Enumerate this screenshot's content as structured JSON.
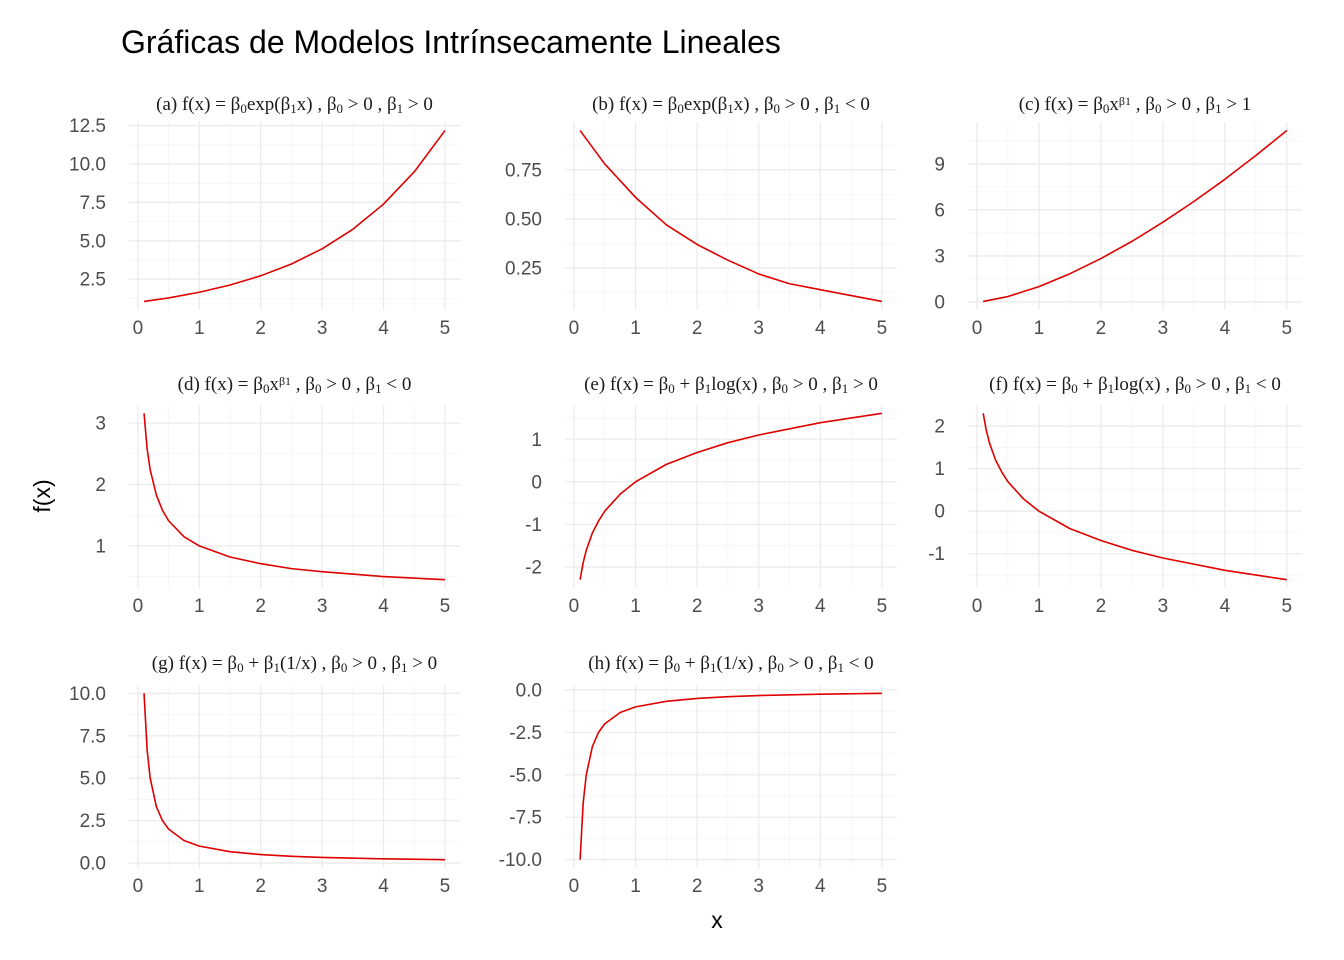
{
  "title": "Gráficas de Modelos Intrínsecamente Lineales",
  "xlabel": "x",
  "ylabel": "f(x)",
  "colors": {
    "curve": "#e00000"
  },
  "chart_data": [
    {
      "type": "line",
      "panel": "a",
      "title": "(a) f(x) = β0exp(β1x) , β0 > 0 , β1 > 0",
      "x": [
        0.1,
        0.5,
        1,
        1.5,
        2,
        2.5,
        3,
        3.5,
        4,
        4.5,
        5
      ],
      "y": [
        1.05,
        1.28,
        1.65,
        2.12,
        2.72,
        3.49,
        4.48,
        5.75,
        7.39,
        9.49,
        12.18
      ],
      "xlim": [
        0,
        5
      ],
      "ylim": [
        1.05,
        12.18
      ],
      "xticks": [
        0,
        1,
        2,
        3,
        4,
        5
      ],
      "yticks": [
        2.5,
        5.0,
        7.5,
        10.0,
        12.5
      ],
      "xtick_labels": [
        "0",
        "1",
        "2",
        "3",
        "4",
        "5"
      ],
      "ytick_labels": [
        "2.5",
        "5.0",
        "7.5",
        "10.0",
        "12.5"
      ]
    },
    {
      "type": "line",
      "panel": "b",
      "title": "(b) f(x) = β0exp(β1x) , β0 > 0 , β1 < 0",
      "x": [
        0.1,
        0.5,
        1,
        1.5,
        2,
        2.5,
        3,
        3.5,
        4,
        4.5,
        5
      ],
      "y": [
        0.95,
        0.78,
        0.61,
        0.47,
        0.37,
        0.29,
        0.22,
        0.17,
        0.14,
        0.11,
        0.08
      ],
      "xlim": [
        0,
        5
      ],
      "ylim": [
        0.08,
        0.95
      ],
      "xticks": [
        0,
        1,
        2,
        3,
        4,
        5
      ],
      "yticks": [
        0.25,
        0.5,
        0.75
      ],
      "xtick_labels": [
        "0",
        "1",
        "2",
        "3",
        "4",
        "5"
      ],
      "ytick_labels": [
        "0.25",
        "0.50",
        "0.75"
      ]
    },
    {
      "type": "line",
      "panel": "c",
      "title": "(c) f(x) = β0x^β1 , β0 > 0 , β1 > 1",
      "x": [
        0.1,
        0.5,
        1,
        1.5,
        2,
        2.5,
        3,
        3.5,
        4,
        4.5,
        5
      ],
      "y": [
        0.03,
        0.35,
        1.0,
        1.84,
        2.83,
        3.95,
        5.2,
        6.55,
        8.0,
        9.55,
        11.18
      ],
      "xlim": [
        0,
        5
      ],
      "ylim": [
        0.03,
        11.18
      ],
      "xticks": [
        0,
        1,
        2,
        3,
        4,
        5
      ],
      "yticks": [
        0,
        3,
        6,
        9
      ],
      "xtick_labels": [
        "0",
        "1",
        "2",
        "3",
        "4",
        "5"
      ],
      "ytick_labels": [
        "0",
        "3",
        "6",
        "9"
      ]
    },
    {
      "type": "line",
      "panel": "d",
      "title": "(d) f(x) = β0x^β1 , β0 > 0 , β1 < 0",
      "x": [
        0.1,
        0.15,
        0.2,
        0.3,
        0.4,
        0.5,
        0.75,
        1,
        1.5,
        2,
        2.5,
        3,
        4,
        5
      ],
      "y": [
        3.16,
        2.58,
        2.24,
        1.83,
        1.58,
        1.41,
        1.15,
        1.0,
        0.82,
        0.71,
        0.63,
        0.58,
        0.5,
        0.45
      ],
      "xlim": [
        0,
        5
      ],
      "ylim": [
        0.45,
        3.16
      ],
      "xticks": [
        0,
        1,
        2,
        3,
        4,
        5
      ],
      "yticks": [
        1,
        2,
        3
      ],
      "xtick_labels": [
        "0",
        "1",
        "2",
        "3",
        "4",
        "5"
      ],
      "ytick_labels": [
        "1",
        "2",
        "3"
      ]
    },
    {
      "type": "line",
      "panel": "e",
      "title": "(e) f(x) = β0 + β1log(x) , β0 > 0 , β1 > 0",
      "x": [
        0.1,
        0.15,
        0.2,
        0.3,
        0.4,
        0.5,
        0.75,
        1,
        1.5,
        2,
        2.5,
        3,
        4,
        5
      ],
      "y": [
        -2.3,
        -1.9,
        -1.61,
        -1.2,
        -0.92,
        -0.69,
        -0.29,
        0.0,
        0.41,
        0.69,
        0.92,
        1.1,
        1.39,
        1.61
      ],
      "xlim": [
        0,
        5
      ],
      "ylim": [
        -2.3,
        1.61
      ],
      "xticks": [
        0,
        1,
        2,
        3,
        4,
        5
      ],
      "yticks": [
        -2,
        -1,
        0,
        1
      ],
      "xtick_labels": [
        "0",
        "1",
        "2",
        "3",
        "4",
        "5"
      ],
      "ytick_labels": [
        "-2",
        "-1",
        "0",
        "1"
      ]
    },
    {
      "type": "line",
      "panel": "f",
      "title": "(f) f(x) = β0 + β1log(x) , β0 > 0 , β1 < 0",
      "x": [
        0.1,
        0.15,
        0.2,
        0.3,
        0.4,
        0.5,
        0.75,
        1,
        1.5,
        2,
        2.5,
        3,
        4,
        5
      ],
      "y": [
        2.3,
        1.9,
        1.61,
        1.2,
        0.92,
        0.69,
        0.29,
        0.0,
        -0.41,
        -0.69,
        -0.92,
        -1.1,
        -1.39,
        -1.61
      ],
      "xlim": [
        0,
        5
      ],
      "ylim": [
        -1.61,
        2.3
      ],
      "xticks": [
        0,
        1,
        2,
        3,
        4,
        5
      ],
      "yticks": [
        -1,
        0,
        1,
        2
      ],
      "xtick_labels": [
        "0",
        "1",
        "2",
        "3",
        "4",
        "5"
      ],
      "ytick_labels": [
        "-1",
        "0",
        "1",
        "2"
      ]
    },
    {
      "type": "line",
      "panel": "g",
      "title": "(g) f(x) = β0 + β1(1/x) , β0 > 0 , β1 > 0",
      "x": [
        0.1,
        0.15,
        0.2,
        0.3,
        0.4,
        0.5,
        0.75,
        1,
        1.5,
        2,
        2.5,
        3,
        4,
        5
      ],
      "y": [
        10.0,
        6.67,
        5.0,
        3.33,
        2.5,
        2.0,
        1.33,
        1.0,
        0.67,
        0.5,
        0.4,
        0.33,
        0.25,
        0.2
      ],
      "xlim": [
        0,
        5
      ],
      "ylim": [
        0.2,
        10.0
      ],
      "xticks": [
        0,
        1,
        2,
        3,
        4,
        5
      ],
      "yticks": [
        0.0,
        2.5,
        5.0,
        7.5,
        10.0
      ],
      "xtick_labels": [
        "0",
        "1",
        "2",
        "3",
        "4",
        "5"
      ],
      "ytick_labels": [
        "0.0",
        "2.5",
        "5.0",
        "7.5",
        "10.0"
      ]
    },
    {
      "type": "line",
      "panel": "h",
      "title": "(h) f(x) = β0 + β1(1/x) , β0 > 0 , β1 < 0",
      "x": [
        0.1,
        0.15,
        0.2,
        0.3,
        0.4,
        0.5,
        0.75,
        1,
        1.5,
        2,
        2.5,
        3,
        4,
        5
      ],
      "y": [
        -10.0,
        -6.67,
        -5.0,
        -3.33,
        -2.5,
        -2.0,
        -1.33,
        -1.0,
        -0.67,
        -0.5,
        -0.4,
        -0.33,
        -0.25,
        -0.2
      ],
      "xlim": [
        0,
        5
      ],
      "ylim": [
        -10.0,
        -0.2
      ],
      "xticks": [
        0,
        1,
        2,
        3,
        4,
        5
      ],
      "yticks": [
        -10.0,
        -7.5,
        -5.0,
        -2.5,
        0.0
      ],
      "xtick_labels": [
        "0",
        "1",
        "2",
        "3",
        "4",
        "5"
      ],
      "ytick_labels": [
        "-10.0",
        "-7.5",
        "-5.0",
        "-2.5",
        "0.0"
      ]
    }
  ]
}
